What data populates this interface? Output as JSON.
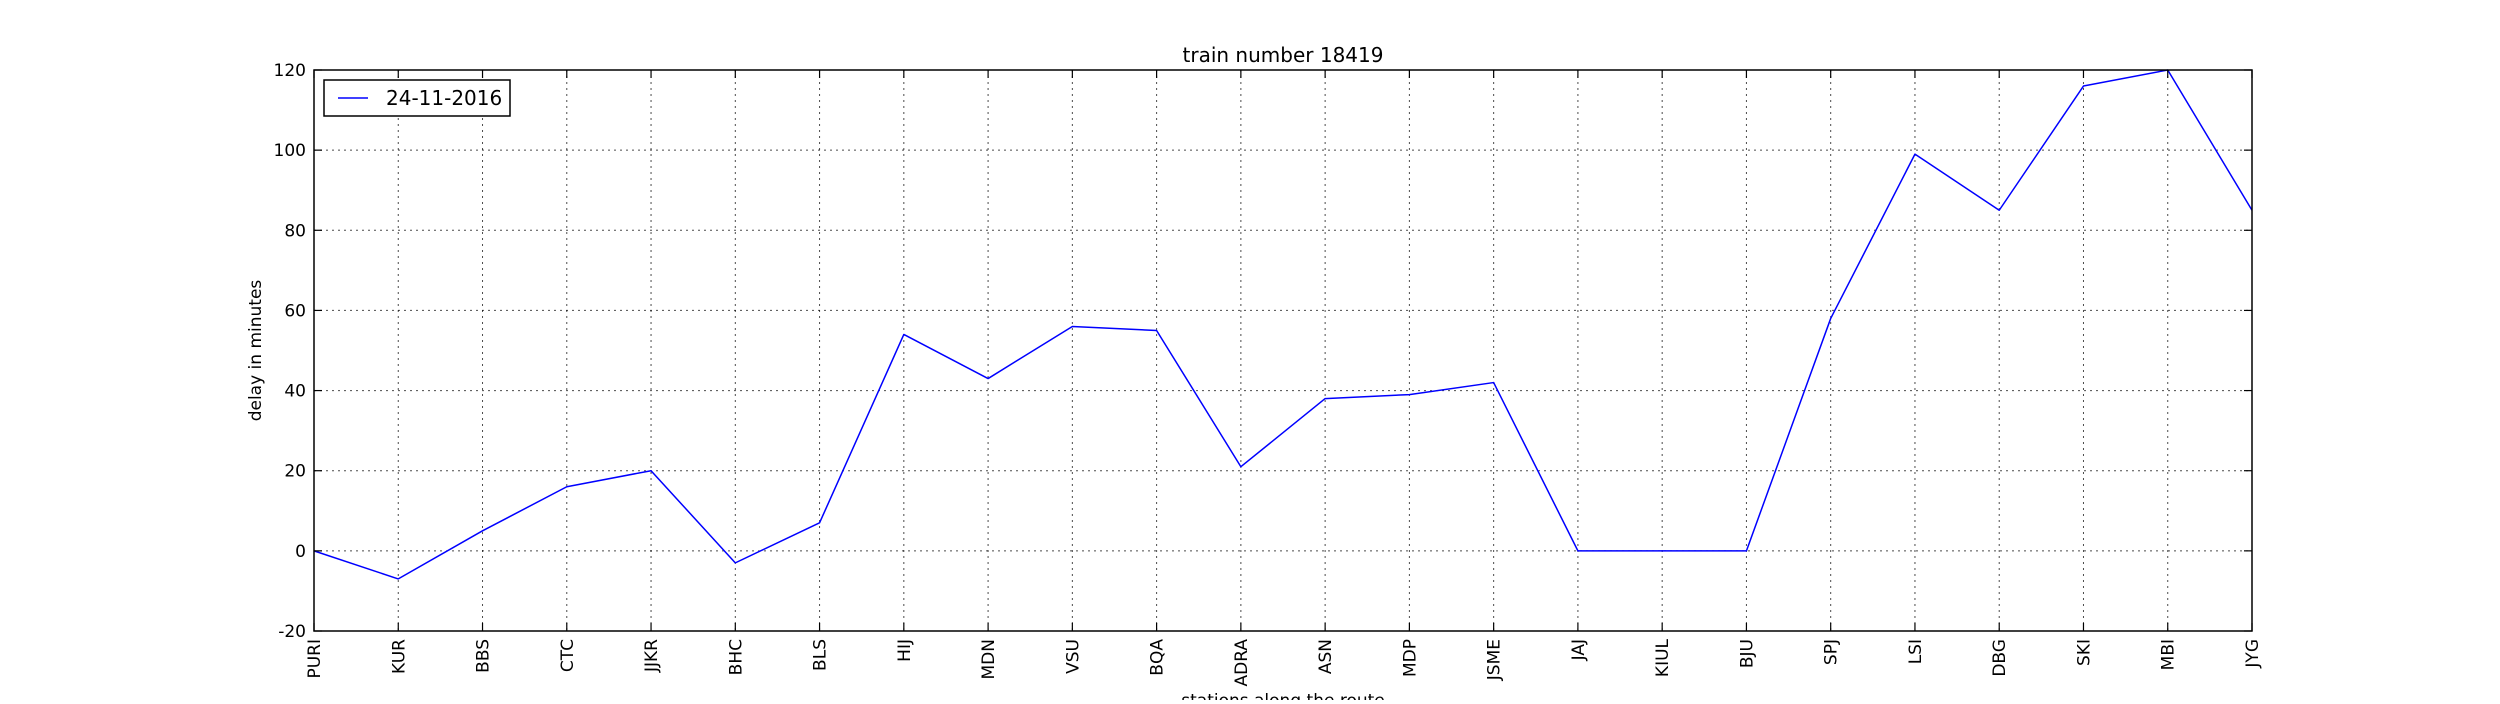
{
  "chart_data": {
    "type": "line",
    "title": "train number 18419",
    "xlabel": "stations along the route",
    "ylabel": "delay in minutes",
    "categories": [
      "PURI",
      "KUR",
      "BBS",
      "CTC",
      "JJKR",
      "BHC",
      "BLS",
      "HIJ",
      "MDN",
      "VSU",
      "BQA",
      "ADRA",
      "ASN",
      "MDP",
      "JSME",
      "JAJ",
      "KIUL",
      "BJU",
      "SPJ",
      "LSI",
      "DBG",
      "SKI",
      "MBI",
      "JYG"
    ],
    "series": [
      {
        "name": "24-11-2016",
        "color": "#0000ff",
        "values": [
          0,
          -7,
          5,
          16,
          20,
          -3,
          7,
          54,
          43,
          56,
          55,
          21,
          38,
          39,
          42,
          0,
          0,
          0,
          58,
          99,
          85,
          116,
          120,
          85
        ]
      }
    ],
    "ylim": [
      -20,
      120
    ],
    "yticks": [
      -20,
      0,
      20,
      40,
      60,
      80,
      100,
      120
    ],
    "grid": true,
    "legend_position": "top-left"
  }
}
